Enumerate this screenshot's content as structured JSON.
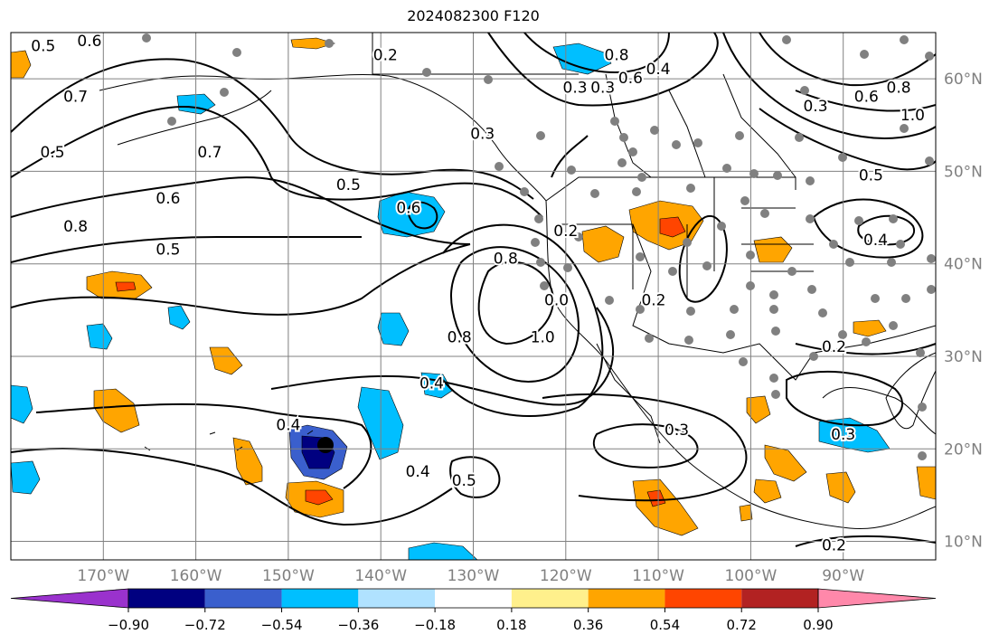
{
  "title": "2024082300 F120",
  "map": {
    "lon_range": [
      -180,
      -80
    ],
    "lat_range": [
      8,
      65
    ],
    "lon_ticks": [
      {
        "lon": -170,
        "label": "170°W"
      },
      {
        "lon": -160,
        "label": "160°W"
      },
      {
        "lon": -150,
        "label": "150°W"
      },
      {
        "lon": -140,
        "label": "140°W"
      },
      {
        "lon": -130,
        "label": "130°W"
      },
      {
        "lon": -120,
        "label": "120°W"
      },
      {
        "lon": -110,
        "label": "110°W"
      },
      {
        "lon": -100,
        "label": "100°W"
      },
      {
        "lon": -90,
        "label": "90°W"
      }
    ],
    "lat_ticks": [
      {
        "lat": 10,
        "label": "10°N"
      },
      {
        "lat": 20,
        "label": "20°N"
      },
      {
        "lat": 30,
        "label": "30°N"
      },
      {
        "lat": 40,
        "label": "40°N"
      },
      {
        "lat": 50,
        "label": "50°N"
      },
      {
        "lat": 60,
        "label": "60°N"
      }
    ],
    "grid": true,
    "contour_labels": [
      {
        "lon": -139.5,
        "lat": 62.5,
        "text": "0.2"
      },
      {
        "lon": -143.5,
        "lat": 48.5,
        "text": "0.5"
      },
      {
        "lon": -163,
        "lat": 47,
        "text": "0.6"
      },
      {
        "lon": -137,
        "lat": 46,
        "text": "0.6"
      },
      {
        "lon": -173,
        "lat": 44,
        "text": "0.8"
      },
      {
        "lon": -163,
        "lat": 41.5,
        "text": "0.5"
      },
      {
        "lon": -134.5,
        "lat": 27,
        "text": "0.4"
      },
      {
        "lon": -150,
        "lat": 22.5,
        "text": "0.4"
      },
      {
        "lon": -136,
        "lat": 17.5,
        "text": "0.4"
      },
      {
        "lon": -131,
        "lat": 16.5,
        "text": "0.5"
      },
      {
        "lon": -108,
        "lat": 22,
        "text": "0.3"
      },
      {
        "lon": -90,
        "lat": 21.5,
        "text": "0.3"
      },
      {
        "lon": -91,
        "lat": 31,
        "text": "0.2"
      },
      {
        "lon": -91,
        "lat": 9.5,
        "text": "0.2"
      },
      {
        "lon": -93,
        "lat": 57,
        "text": "0.3"
      },
      {
        "lon": -84,
        "lat": 59,
        "text": "0.8"
      },
      {
        "lon": -82.5,
        "lat": 56,
        "text": "1.0"
      },
      {
        "lon": -87,
        "lat": 49.5,
        "text": "0.5"
      },
      {
        "lon": -86.5,
        "lat": 42.5,
        "text": "0.4"
      },
      {
        "lon": -113,
        "lat": 60,
        "text": "0.6"
      },
      {
        "lon": -116,
        "lat": 59,
        "text": "0.3"
      },
      {
        "lon": -119,
        "lat": 59,
        "text": "0.3"
      },
      {
        "lon": -110,
        "lat": 61,
        "text": "0.4"
      },
      {
        "lon": -114.5,
        "lat": 62.5,
        "text": "0.8"
      },
      {
        "lon": -120,
        "lat": 43.5,
        "text": "0.2"
      },
      {
        "lon": -126.5,
        "lat": 40.5,
        "text": "0.8"
      },
      {
        "lon": -129,
        "lat": 54,
        "text": "0.3"
      },
      {
        "lon": -110.5,
        "lat": 36,
        "text": "0.2"
      },
      {
        "lon": -121,
        "lat": 36,
        "text": "0.0"
      },
      {
        "lon": -122.5,
        "lat": 32,
        "text": "1.0"
      },
      {
        "lon": -131.5,
        "lat": 32,
        "text": "0.8"
      },
      {
        "lon": -176.5,
        "lat": 63.5,
        "text": "0.5"
      },
      {
        "lon": -171.5,
        "lat": 64,
        "text": "0.6"
      },
      {
        "lon": -173,
        "lat": 58,
        "text": "0.7"
      },
      {
        "lon": -175.5,
        "lat": 52,
        "text": "0.5"
      },
      {
        "lon": -158.5,
        "lat": 52,
        "text": "0.7"
      },
      {
        "lon": -87.5,
        "lat": 58,
        "text": "0.6"
      }
    ]
  },
  "colorbar": {
    "colors": [
      "#9a32cd",
      "#000080",
      "#3a5fcd",
      "#00bfff",
      "#b0e2ff",
      "#ffffff",
      "#fff08c",
      "#ffa500",
      "#ff4500",
      "#b22222",
      "#ff88aa"
    ],
    "tick_labels": [
      "−0.90",
      "−0.72",
      "−0.54",
      "−0.36",
      "−0.18",
      "0.18",
      "0.36",
      "0.54",
      "0.72",
      "0.90"
    ]
  }
}
